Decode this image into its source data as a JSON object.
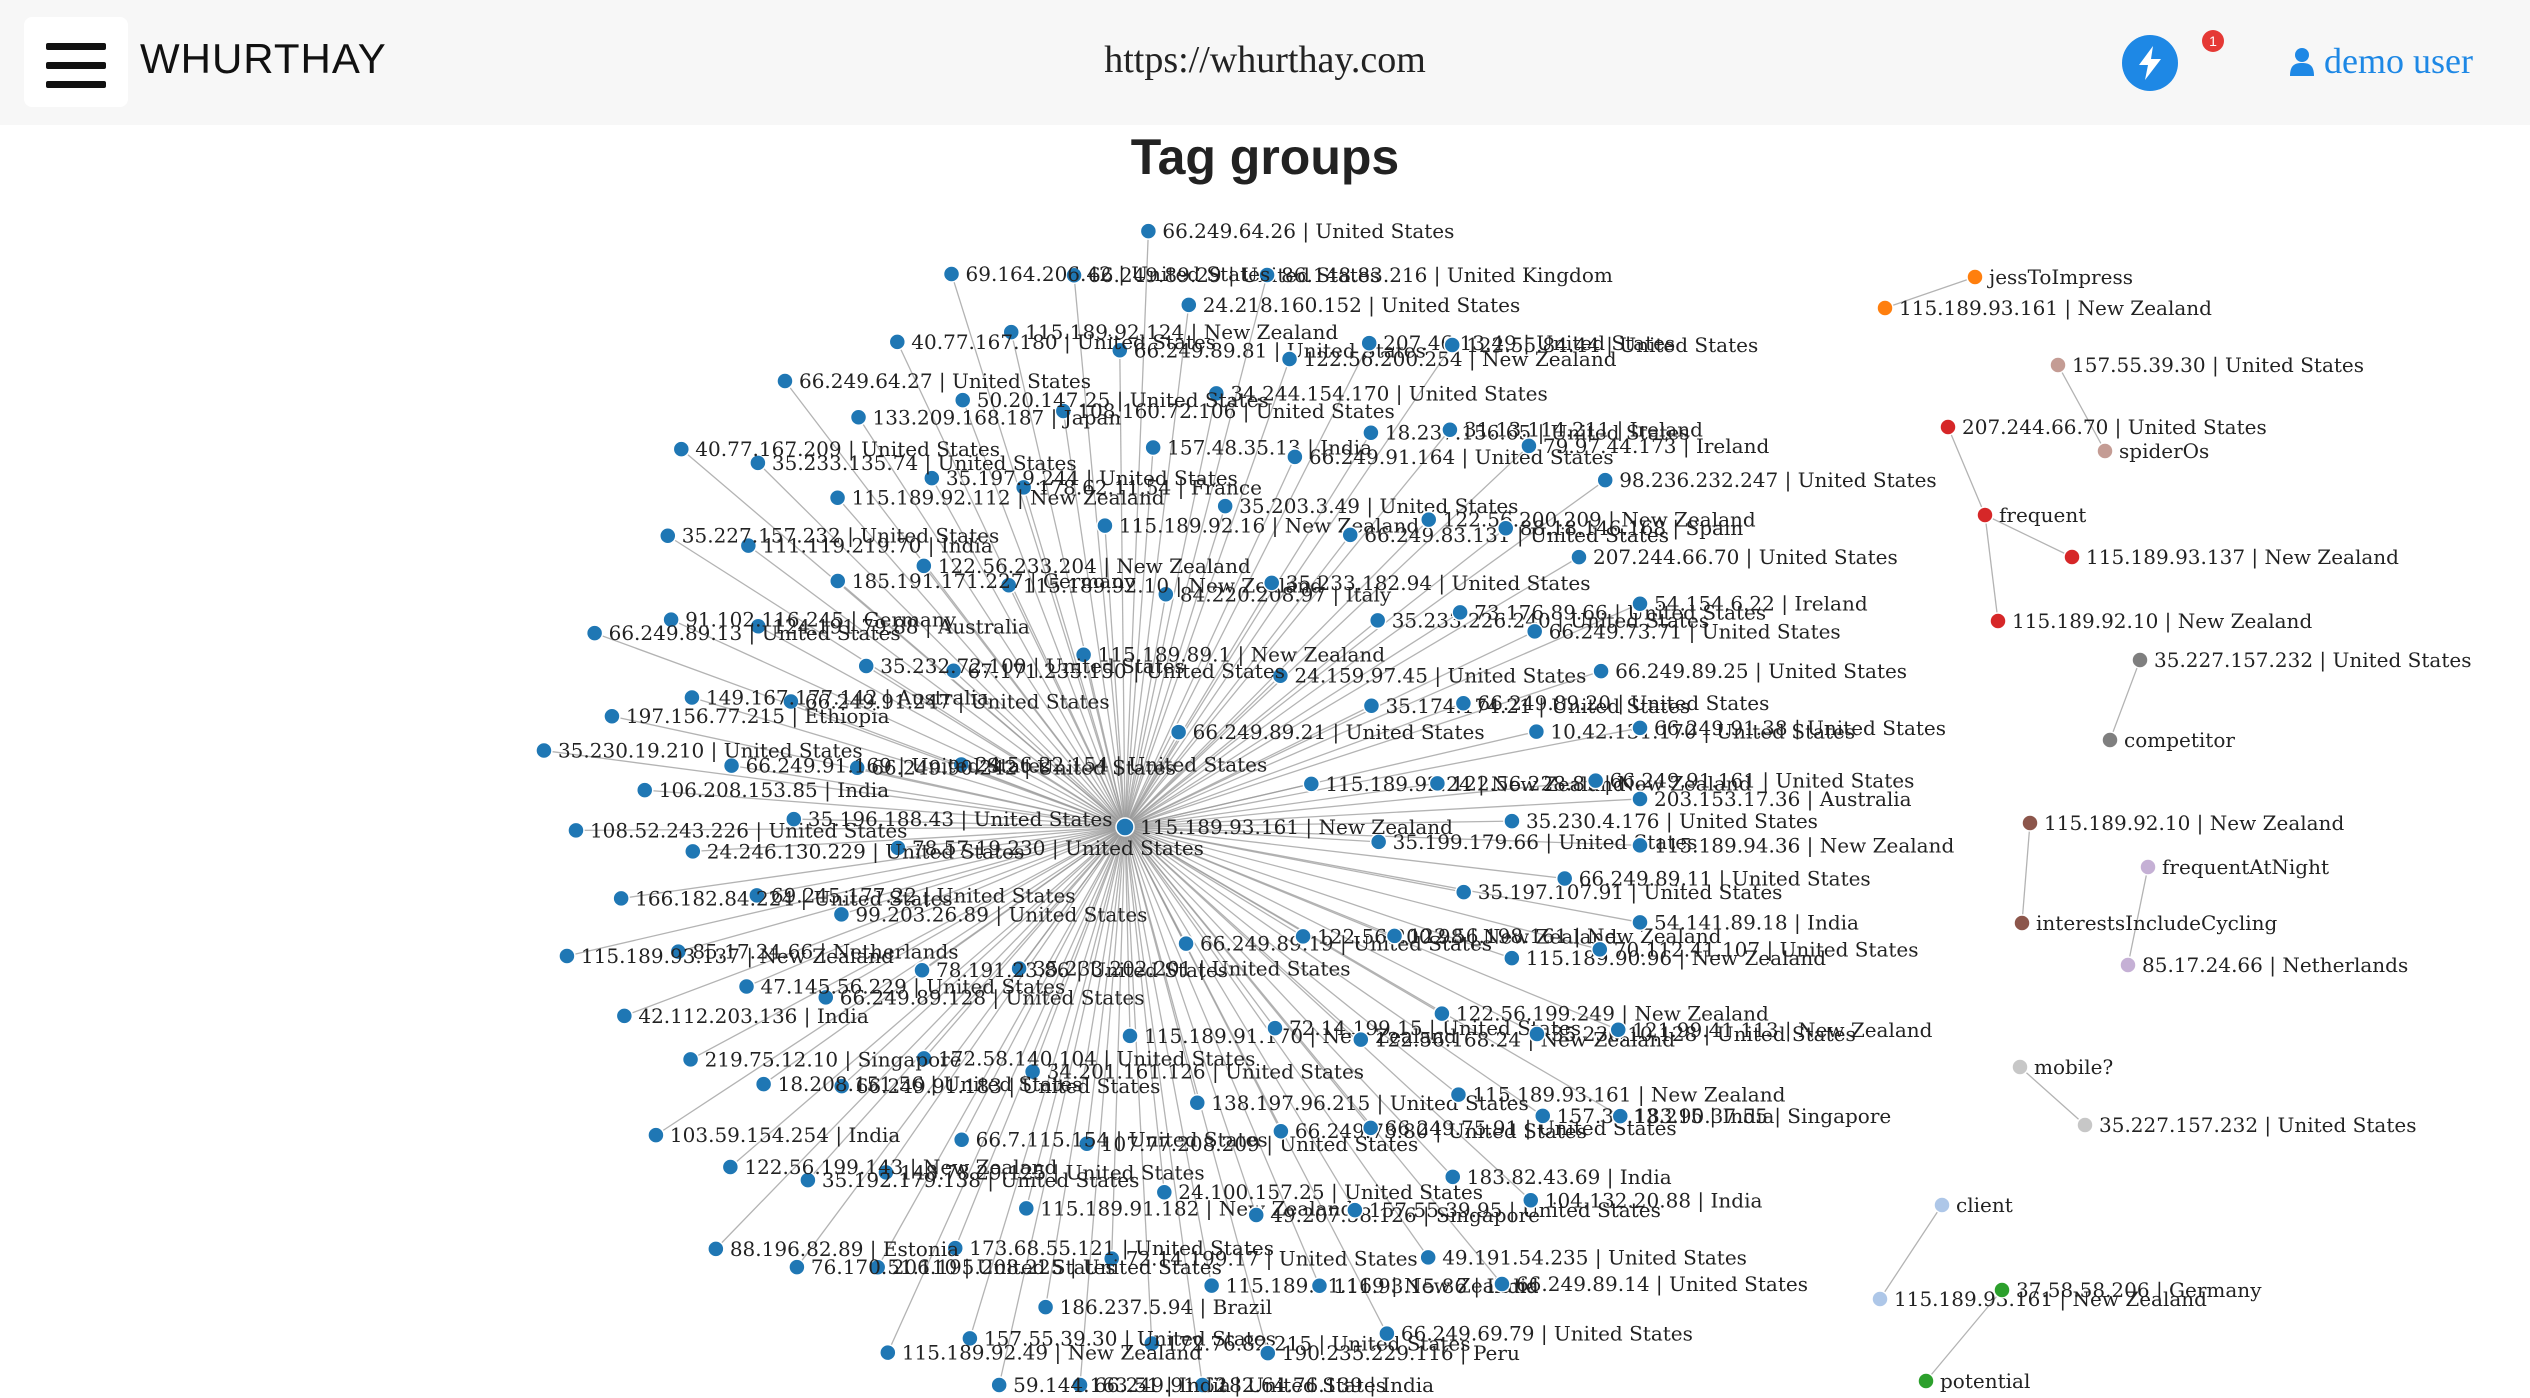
{
  "header": {
    "brand": "WHURTHAY",
    "url": "https://whurthay.com",
    "notification_count": "1",
    "user_label": "demo user",
    "icons": {
      "menu": "hamburger-icon",
      "notifications": "lightning-bolt-icon",
      "user": "user-icon"
    },
    "colors": {
      "accent": "#1e88e5",
      "badge": "#e53935"
    }
  },
  "page": {
    "title": "Tag groups"
  },
  "graph": {
    "hub_color": "#1f77b4",
    "hub_nodes": [
      "66.249.89.21 | United States",
      "66.249.89.19 | United States",
      "24.56.22.154 | United States",
      "115.189.92.24 | New Zealand",
      "35.233.202.201 | United States",
      "115.189.89.1 | New Zealand",
      "122.56.200.98 | New Zealand",
      "78.57.19.230 | United States",
      "24.159.97.45 | United States",
      "115.189.91.170 | New Zealand",
      "67.171.235.150 | United States",
      "35.199.179.66 | United States",
      "78.191.23.86 | United States",
      "84.220.208.97 | Italy",
      "72.14.199.15 | United States",
      "66.249.90.242 | United States",
      "35.174.174.21 | United States",
      "34.201.161.126 | United States",
      "115.189.92.10 | New Zealand",
      "122.56.198.161 | New Zealand",
      "99.203.26.89 | United States",
      "35.233.182.94 | United States",
      "138.197.96.215 | United States",
      "35.232.72.100 | United States",
      "122.56.228.81 | New Zealand",
      "172.58.140.104 | United States",
      "115.189.92.16 | New Zealand",
      "122.56.168.24 | New Zealand",
      "35.196.188.43 | United States",
      "35.233.226.240 | United States",
      "107.77.208.209 | United States",
      "122.56.233.204 | New Zealand",
      "35.197.107.91 | United States",
      "66.249.89.128 | United States",
      "35.203.3.49 | United States",
      "66.249.73.80 | United States",
      "66.249.91.247 | United States",
      "66.249.89.20 | United States",
      "66.7.115.154 | United States",
      "178.62.11.54 | France",
      "122.56.199.249 | New Zealand",
      "69.245.177.22 | United States",
      "66.249.83.131 | United States",
      "24.100.157.25 | United States",
      "185.191.171.227 | Germany",
      "35.230.4.176 | United States",
      "66.249.91.183 | United States",
      "157.48.35.13 | India",
      "66.249.75.91 | United States",
      "66.249.91.169 | United States",
      "73.176.89.66 | United States",
      "115.189.91.182 | New Zealand",
      "35.197.9.244 | United States",
      "115.189.90.96 | New Zealand",
      "47.145.56.229 | United States",
      "66.249.91.164 | United States",
      "49.207.58.126 | Singapore",
      "124.191.79.88 | Australia",
      "10.42.131.170 | United States",
      "148.78.29.125 | United States",
      "108.160.72.106 | United States",
      "115.189.93.161 | New Zealand",
      "24.246.130.229 | United States",
      "122.56.200.209 | New Zealand",
      "72.14.199.17 | United States",
      "115.189.92.112 | New Zealand",
      "66.249.89.11 | United States",
      "18.208.151.56 | United States",
      "34.244.154.170 | United States",
      "157.55.39.95 | United States",
      "149.167.177.142 | Australia",
      "66.249.73.71 | United States",
      "173.68.55.121 | United States",
      "50.20.147.25 | United States",
      "35.230.10.128 | United States",
      "85.17.24.66 | Netherlands",
      "18.237.156.65 | United States",
      "115.189.91.169 | New Zealand",
      "111.119.219.70 | India",
      "66.249.91.161 | United States",
      "35.192.179.138 | United States",
      "66.249.89.81 | United States",
      "183.82.43.69 | India",
      "106.208.153.85 | India",
      "88.18.146.168 | Spain",
      "186.237.5.94 | Brazil",
      "133.209.168.187 | Japan",
      "70.112.41.107 | United States",
      "219.75.12.10 | Singapore",
      "122.56.200.254 | New Zealand",
      "111.93.15.86 | India",
      "91.102.116.245 | Germany",
      "66.249.89.25 | United States",
      "206.195.208.225 | United States",
      "115.189.92.124 | New Zealand",
      "157.39.13.215 | India",
      "166.182.84.224 | United States",
      "31.13.114.211 | Ireland",
      "172.76.82.215 | United States",
      "35.233.135.74 | United States",
      "115.189.94.36 | New Zealand",
      "122.56.199.143 | New Zealand",
      "24.218.160.152 | United States",
      "49.191.54.235 | United States",
      "197.156.77.215 | Ethiopia",
      "207.244.66.70 | United States",
      "157.55.39.30 | United States",
      "40.77.167.180 | United States",
      "121.99.41.113 | New Zealand",
      "42.112.203.136 | India",
      "207.46.13.49 | United States",
      "190.235.229.116 | Peru",
      "35.227.157.232 | United States",
      "66.249.91.38 | United States",
      "76.170.51.110 | United States",
      "66.249.89.29 | United States",
      "104.132.20.88 | India",
      "108.52.243.226 | United States",
      "79.97.44.173 | Ireland",
      "66.249.91.62 | United States",
      "66.249.64.27 | United States",
      "54.141.89.18 | India",
      "103.59.154.254 | India",
      "86.148.83.216 | United Kingdom",
      "66.249.69.79 | United States",
      "66.249.89.13 | United States",
      "54.154.6.22 | Ireland",
      "115.189.92.49 | New Zealand",
      "69.164.206.42 | United States",
      "183.90.37.55 | Singapore",
      "115.189.93.137 | New Zealand",
      "122.55.84.44 | United States",
      "182.64.76.139 | India",
      "40.77.167.209 | United States",
      "203.153.17.36 | Australia",
      "88.196.82.89 | Estonia",
      "66.249.64.26 | United States",
      "66.249.89.14 | United States",
      "35.230.19.210 | United States",
      "98.236.232.247 | United States",
      "59.144.163.51 | India"
    ],
    "hub_label": "115.189.93.161 | New Zealand",
    "groups": [
      {
        "tag": "jessToImpress",
        "color": "#ff7f0e",
        "nodes": [
          "115.189.93.161 | New Zealand"
        ]
      },
      {
        "tag": "frequent",
        "color": "#d62728",
        "nodes": [
          "207.244.66.70 | United States",
          "115.189.93.137 | New Zealand",
          "115.189.92.10 | New Zealand"
        ]
      },
      {
        "tag": "spiderOs",
        "color": "#c49c94",
        "nodes": [
          "157.55.39.30 | United States"
        ]
      },
      {
        "tag": "competitor",
        "color": "#7f7f7f",
        "nodes": [
          "35.227.157.232 | United States"
        ]
      },
      {
        "tag": "interestsIncludeCycling",
        "color": "#8c564b",
        "nodes": [
          "115.189.92.10 | New Zealand"
        ]
      },
      {
        "tag": "frequentAtNight",
        "color": "#c5b0d5",
        "nodes": [
          "85.17.24.66 | Netherlands"
        ]
      },
      {
        "tag": "mobile?",
        "color": "#c7c7c7",
        "nodes": [
          "35.227.157.232 | United States"
        ]
      },
      {
        "tag": "client",
        "color": "#aec7e8",
        "nodes": [
          "115.189.93.161 | New Zealand"
        ]
      },
      {
        "tag": "potential",
        "color": "#2ca02c",
        "nodes": [
          "37.58.58.206 | Germany"
        ]
      }
    ]
  }
}
